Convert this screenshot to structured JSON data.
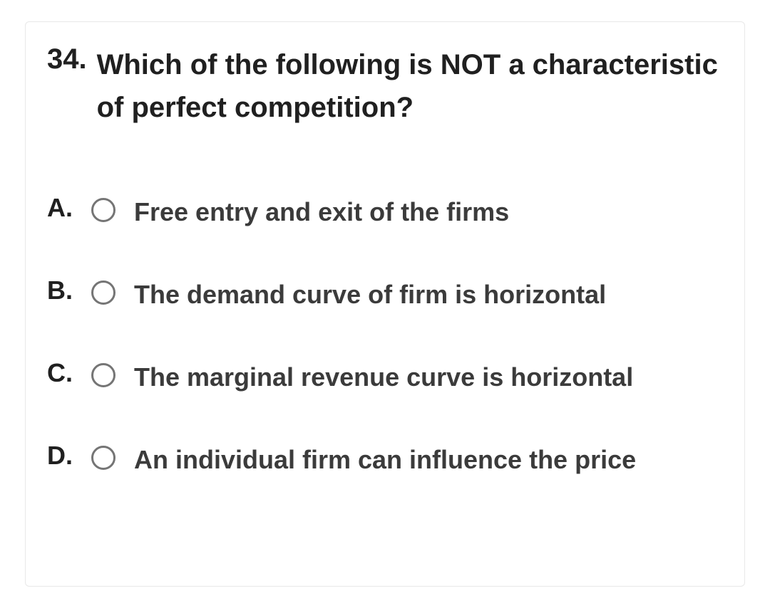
{
  "question": {
    "number": "34.",
    "text": "Which of the following is NOT a characteristic of perfect competition?"
  },
  "options": [
    {
      "letter": "A.",
      "text": "Free entry and exit of the firms"
    },
    {
      "letter": "B.",
      "text": "The demand curve of firm is horizontal"
    },
    {
      "letter": "C.",
      "text": "The marginal revenue curve is horizontal"
    },
    {
      "letter": "D.",
      "text": "An individual firm can influence the price"
    }
  ],
  "colors": {
    "text_primary": "#202020",
    "text_option": "#3b3b3b",
    "radio_border": "#757575",
    "card_border": "#e8e8e8",
    "background": "#ffffff"
  },
  "typography": {
    "question_fontsize": 40,
    "option_fontsize": 36,
    "font_weight": 700,
    "font_family": "Arial"
  }
}
